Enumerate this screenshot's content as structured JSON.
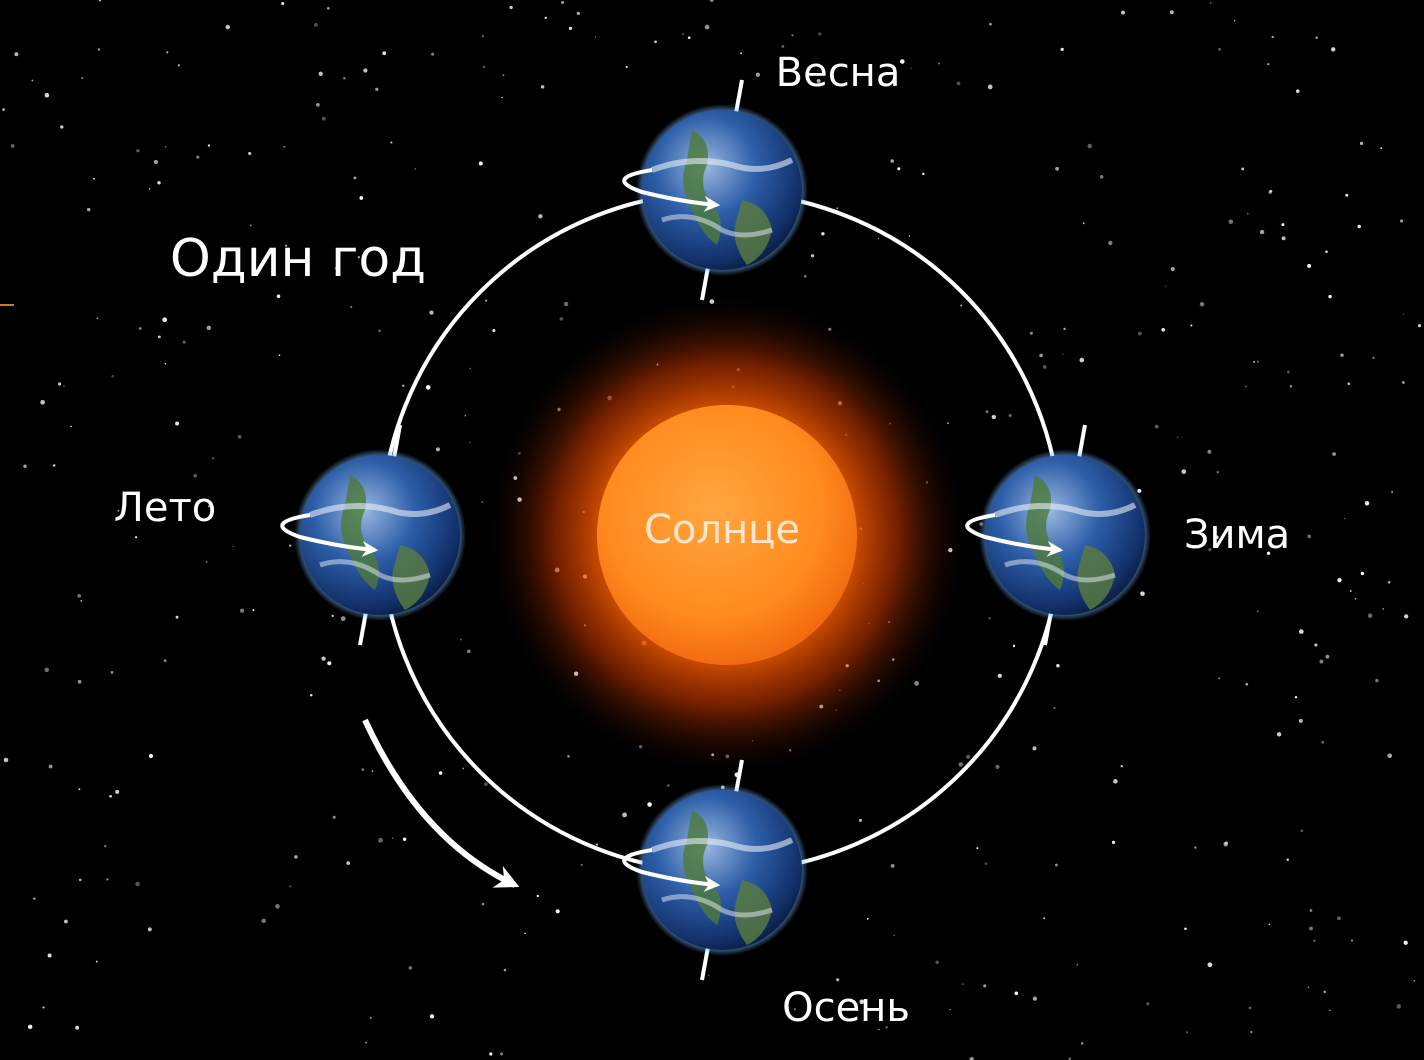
{
  "title": "Один год",
  "center": {
    "label": "Солнце"
  },
  "nodes": [
    {
      "label": "Весна"
    },
    {
      "label": "Лето"
    },
    {
      "label": "Зима"
    },
    {
      "label": "Осень"
    }
  ]
}
